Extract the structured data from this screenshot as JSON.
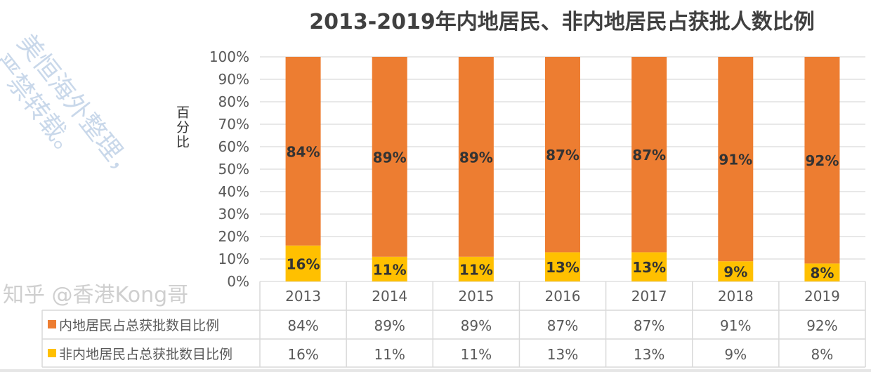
{
  "chart_data": {
    "type": "bar",
    "stacked": true,
    "title": "2013-2019年内地居民、非内地居民占获批人数比例",
    "xlabel": "",
    "ylabel": "百分比",
    "ylim": [
      0,
      1
    ],
    "yticks": [
      "0%",
      "10%",
      "20%",
      "30%",
      "40%",
      "50%",
      "60%",
      "70%",
      "80%",
      "90%",
      "100%"
    ],
    "grid": true,
    "legend": "data-table below chart",
    "categories": [
      "2013",
      "2014",
      "2015",
      "2016",
      "2017",
      "2018",
      "2019"
    ],
    "series": [
      {
        "name": "非内地居民占总获批数目比例",
        "color": "#FFC000",
        "values": [
          0.16,
          0.11,
          0.11,
          0.13,
          0.13,
          0.09,
          0.08
        ],
        "labels": [
          "16%",
          "11%",
          "11%",
          "13%",
          "13%",
          "9%",
          "8%"
        ]
      },
      {
        "name": "内地居民占总获批数目比例",
        "color": "#ED7D31",
        "values": [
          0.84,
          0.89,
          0.89,
          0.87,
          0.87,
          0.91,
          0.92
        ],
        "labels": [
          "84%",
          "89%",
          "89%",
          "87%",
          "87%",
          "91%",
          "92%"
        ]
      }
    ]
  },
  "watermarks": {
    "publisher": "美恒海外整理，严禁转载。",
    "zhihu": "知乎 @香港Kong哥"
  }
}
